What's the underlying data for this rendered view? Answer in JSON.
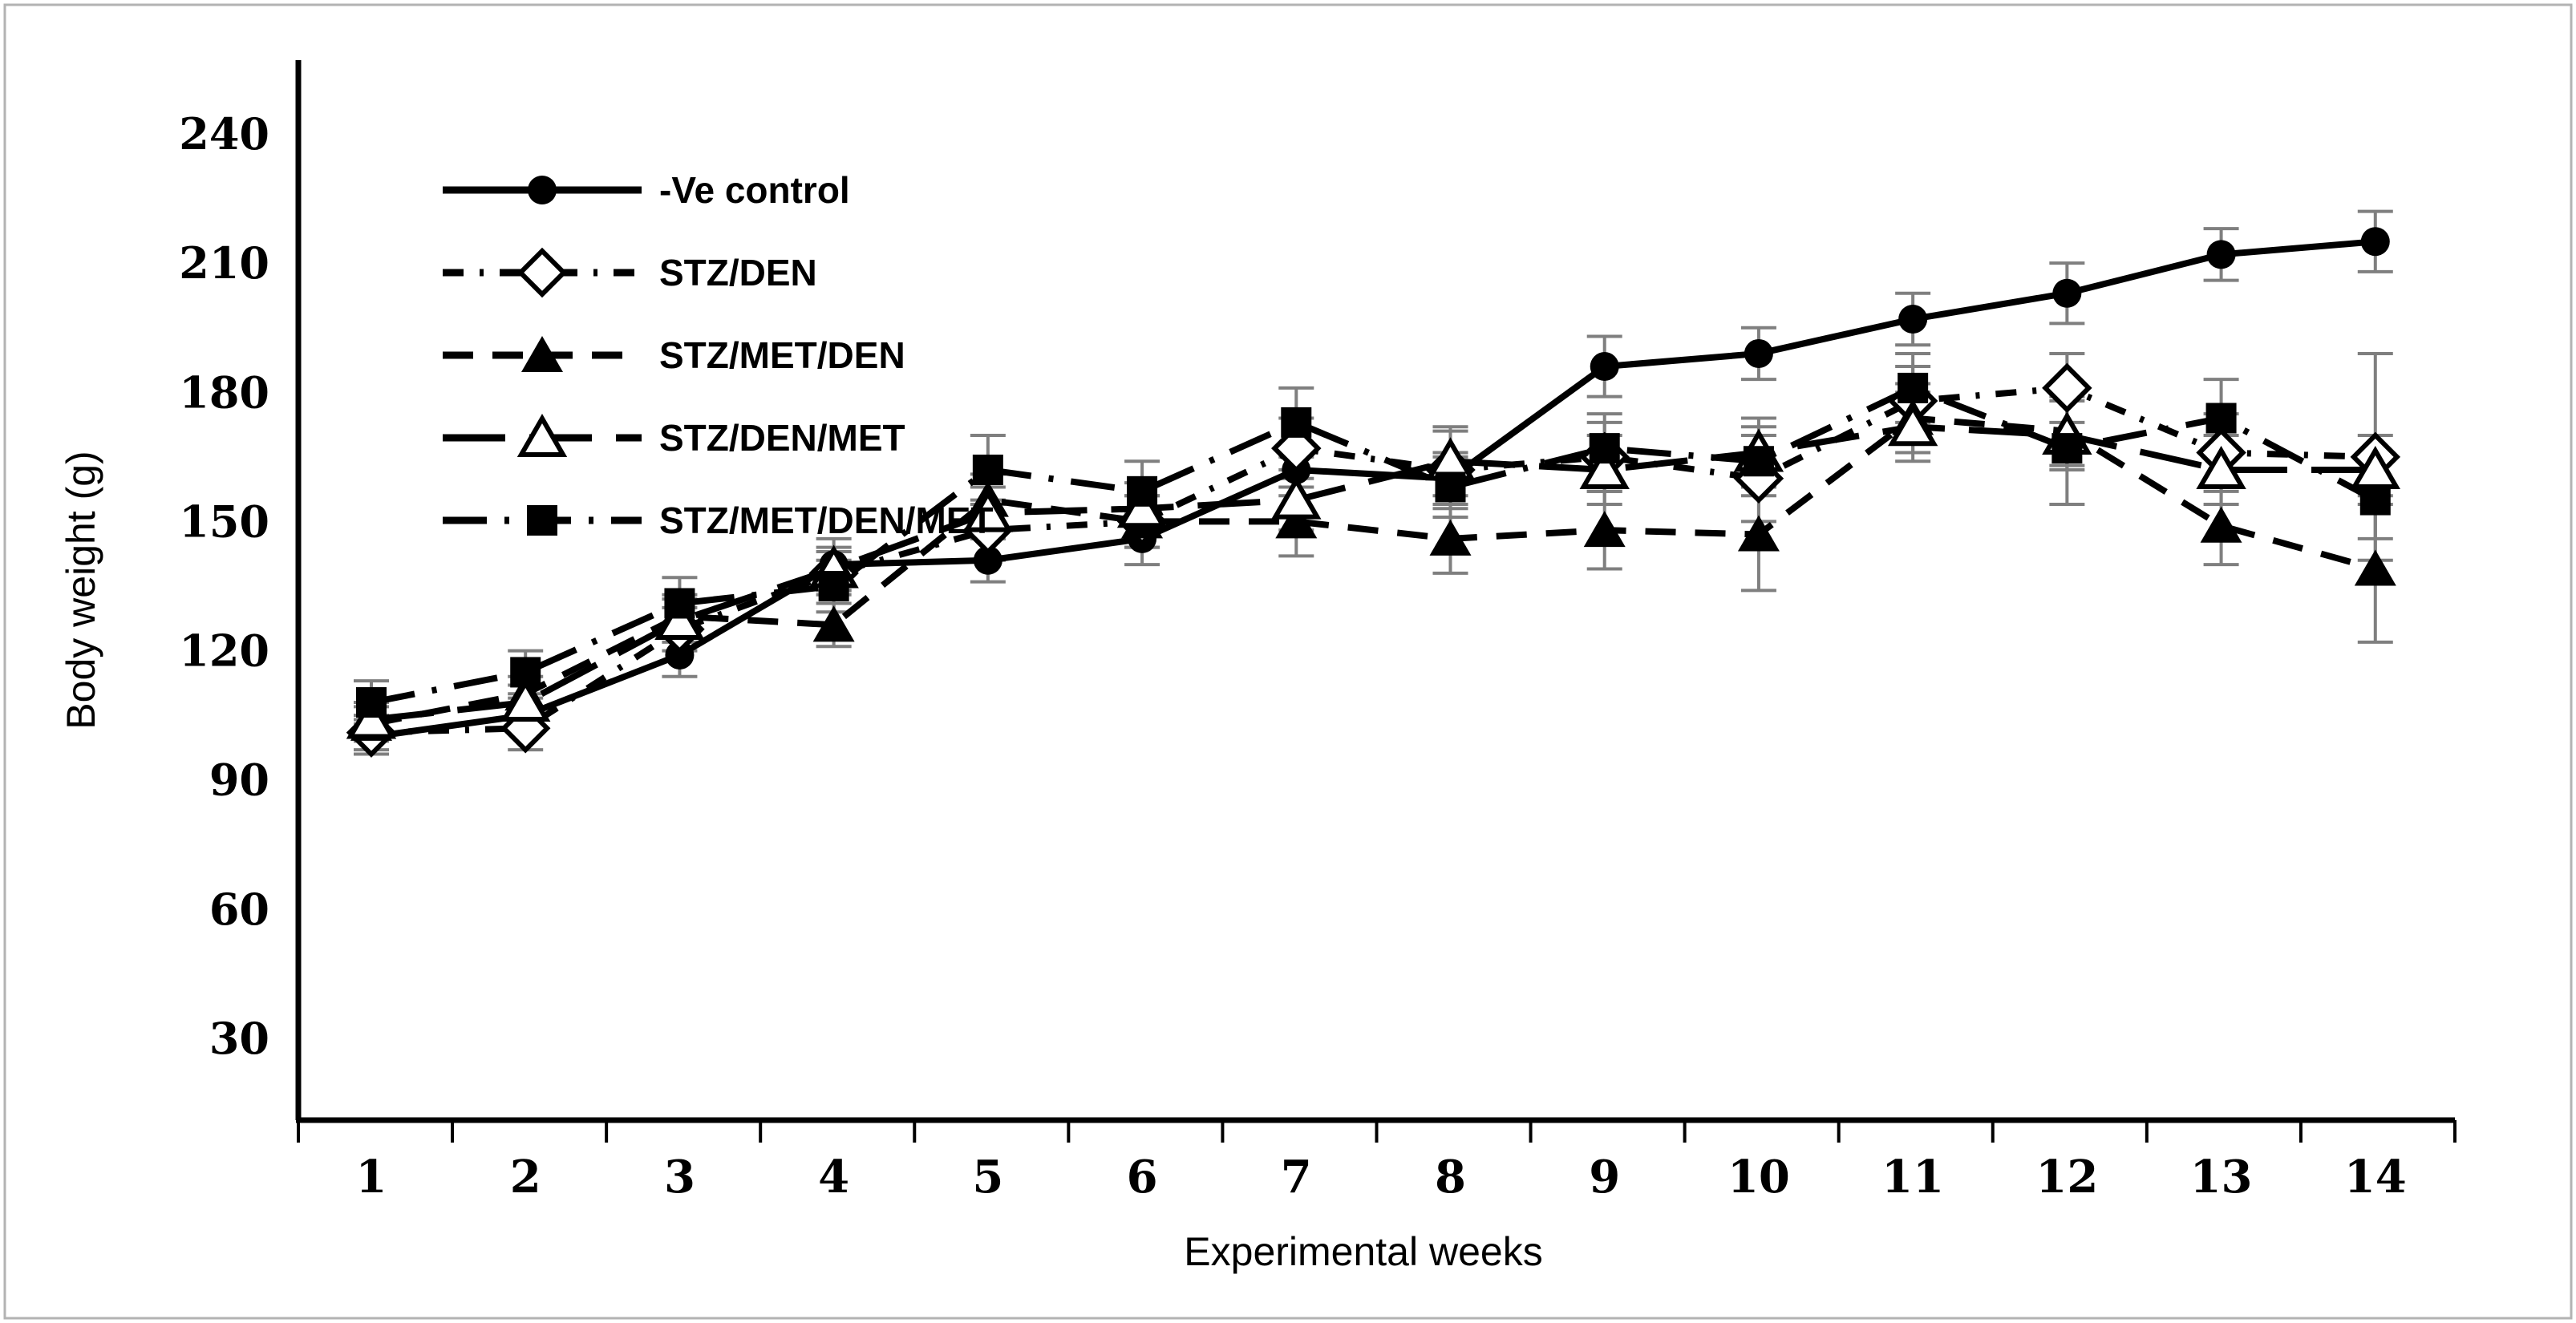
{
  "figure": {
    "background": "#ffffff",
    "border_color": "#b3b3b3",
    "axis_color": "#000000",
    "error_bar_color": "#7f7f7f",
    "series_color": "#000000"
  },
  "chart_data": {
    "type": "line",
    "title": "",
    "xlabel": "Experimental weeks",
    "ylabel": "Body weight (g)",
    "x": [
      1,
      2,
      3,
      4,
      5,
      6,
      7,
      8,
      9,
      10,
      11,
      12,
      13,
      14
    ],
    "x_tick_labels": [
      "1",
      "2",
      "3",
      "4",
      "5",
      "6",
      "7",
      "8",
      "9",
      "10",
      "11",
      "12",
      "13",
      "14"
    ],
    "y_ticks": [
      240,
      210,
      180,
      150,
      120,
      90,
      60,
      30
    ],
    "ylim": [
      10,
      254
    ],
    "grid": false,
    "legend_position": "top-left-inside",
    "error_bars": true,
    "series": [
      {
        "name": "-Ve control",
        "marker": "filled-circle",
        "line_style": "solid",
        "values": [
          100,
          105,
          119,
          140,
          141,
          146,
          162,
          160,
          186,
          189,
          197,
          203,
          212,
          215
        ],
        "errors": [
          4,
          4,
          5,
          6,
          5,
          6,
          6,
          6,
          7,
          6,
          6,
          7,
          6,
          7
        ]
      },
      {
        "name": "STZ/DEN",
        "marker": "open-diamond",
        "line_style": "dash-dot",
        "values": [
          101,
          102,
          125,
          138,
          148,
          150,
          167,
          162,
          165,
          160,
          178,
          181,
          166,
          165
        ],
        "errors": [
          4,
          5,
          5,
          5,
          7,
          6,
          7,
          9,
          8,
          10,
          8,
          8,
          9,
          24
        ]
      },
      {
        "name": "STZ/MET/DEN",
        "marker": "filled-triangle",
        "line_style": "dashed",
        "values": [
          103,
          110,
          128,
          126,
          155,
          150,
          150,
          146,
          148,
          147,
          174,
          171,
          149,
          139
        ],
        "errors": [
          4,
          4,
          5,
          5,
          6,
          6,
          8,
          8,
          9,
          13,
          8,
          8,
          9,
          17
        ]
      },
      {
        "name": "STZ/DEN/MET",
        "marker": "open-triangle",
        "line_style": "long-dash",
        "values": [
          104,
          108,
          127,
          139,
          152,
          153,
          155,
          164,
          162,
          166,
          172,
          170,
          162,
          162
        ],
        "errors": [
          4,
          4,
          5,
          5,
          6,
          6,
          7,
          8,
          8,
          8,
          8,
          8,
          8,
          8
        ]
      },
      {
        "name": "STZ/MET/DEN/MET",
        "marker": "filled-square",
        "line_style": "long-dash-dot",
        "values": [
          108,
          115,
          131,
          135,
          162,
          157,
          173,
          158,
          167,
          164,
          181,
          167,
          174,
          155
        ],
        "errors": [
          5,
          5,
          6,
          6,
          8,
          7,
          8,
          7,
          8,
          8,
          8,
          13,
          9,
          9
        ]
      }
    ]
  }
}
